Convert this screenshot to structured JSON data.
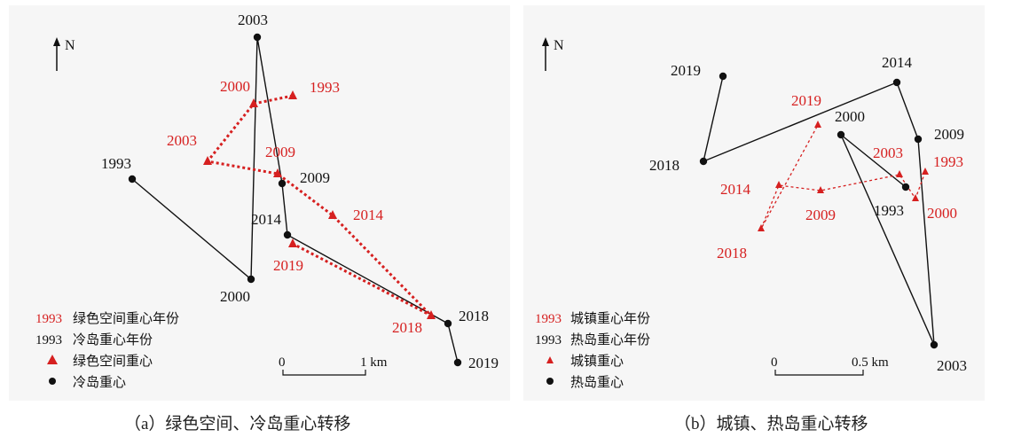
{
  "panel_a": {
    "caption": "（a）绿色空间、冷岛重心转移",
    "north": "N",
    "legend": {
      "green_year": "1993",
      "green_year_label": "绿色空间重心年份",
      "cool_year": "1993",
      "cool_year_label": "冷岛重心年份",
      "green_marker_label": "绿色空间重心",
      "cool_marker_label": "冷岛重心"
    },
    "scale": {
      "start": "0",
      "end": "1 km"
    },
    "green_points": [
      {
        "year": "1993"
      },
      {
        "year": "2000"
      },
      {
        "year": "2003"
      },
      {
        "year": "2009"
      },
      {
        "year": "2014"
      },
      {
        "year": "2018"
      },
      {
        "year": "2019"
      }
    ],
    "cool_points": [
      {
        "year": "1993"
      },
      {
        "year": "2000"
      },
      {
        "year": "2003"
      },
      {
        "year": "2009"
      },
      {
        "year": "2014"
      },
      {
        "year": "2018"
      },
      {
        "year": "2019"
      }
    ]
  },
  "panel_b": {
    "caption": "（b）城镇、热岛重心转移",
    "north": "N",
    "legend": {
      "urban_year": "1993",
      "urban_year_label": "城镇重心年份",
      "heat_year": "1993",
      "heat_year_label": "热岛重心年份",
      "urban_marker_label": "城镇重心",
      "heat_marker_label": "热岛重心"
    },
    "scale": {
      "start": "0",
      "end": "0.5 km"
    },
    "urban_points": [
      {
        "year": "1993"
      },
      {
        "year": "2000"
      },
      {
        "year": "2003"
      },
      {
        "year": "2009"
      },
      {
        "year": "2014"
      },
      {
        "year": "2018"
      },
      {
        "year": "2019"
      }
    ],
    "heat_points": [
      {
        "year": "1993"
      },
      {
        "year": "2000"
      },
      {
        "year": "2003"
      },
      {
        "year": "2009"
      },
      {
        "year": "2014"
      },
      {
        "year": "2018"
      },
      {
        "year": "2019"
      }
    ]
  },
  "colors": {
    "red": "#d62020",
    "black": "#111111"
  }
}
